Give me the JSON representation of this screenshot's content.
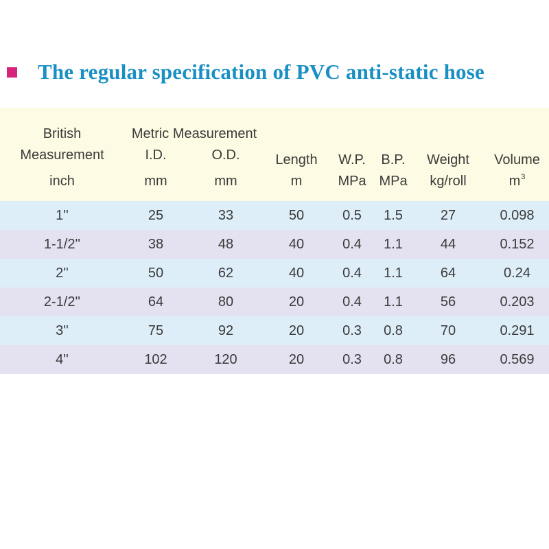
{
  "title": "The regular specification of PVC anti-static hose",
  "colors": {
    "bullet": "#d6247a",
    "title": "#1a8fc4",
    "header_bg": "#fdfbe3",
    "row_blue": "#ddeef9",
    "row_lavender": "#e4e1f0"
  },
  "header": {
    "british": "British",
    "measurement": "Measurement",
    "metric": "Metric Measurement",
    "id": "I.D.",
    "od": "O.D.",
    "length": "Length",
    "wp": "W.P.",
    "bp": "B.P.",
    "weight": "Weight",
    "volume": "Volume",
    "units": {
      "inch": "inch",
      "id_mm": "mm",
      "od_mm": "mm",
      "length": "m",
      "wp": "MPa",
      "bp": "MPa",
      "weight": "kg/roll",
      "volume_base": "m",
      "volume_exp": "3"
    }
  },
  "rows": [
    [
      "1''",
      "25",
      "33",
      "50",
      "0.5",
      "1.5",
      "27",
      "0.098"
    ],
    [
      "1-1/2''",
      "38",
      "48",
      "40",
      "0.4",
      "1.1",
      "44",
      "0.152"
    ],
    [
      "2''",
      "50",
      "62",
      "40",
      "0.4",
      "1.1",
      "64",
      "0.24"
    ],
    [
      "2-1/2''",
      "64",
      "80",
      "20",
      "0.4",
      "1.1",
      "56",
      "0.203"
    ],
    [
      "3''",
      "75",
      "92",
      "20",
      "0.3",
      "0.8",
      "70",
      "0.291"
    ],
    [
      "4''",
      "102",
      "120",
      "20",
      "0.3",
      "0.8",
      "96",
      "0.569"
    ]
  ]
}
